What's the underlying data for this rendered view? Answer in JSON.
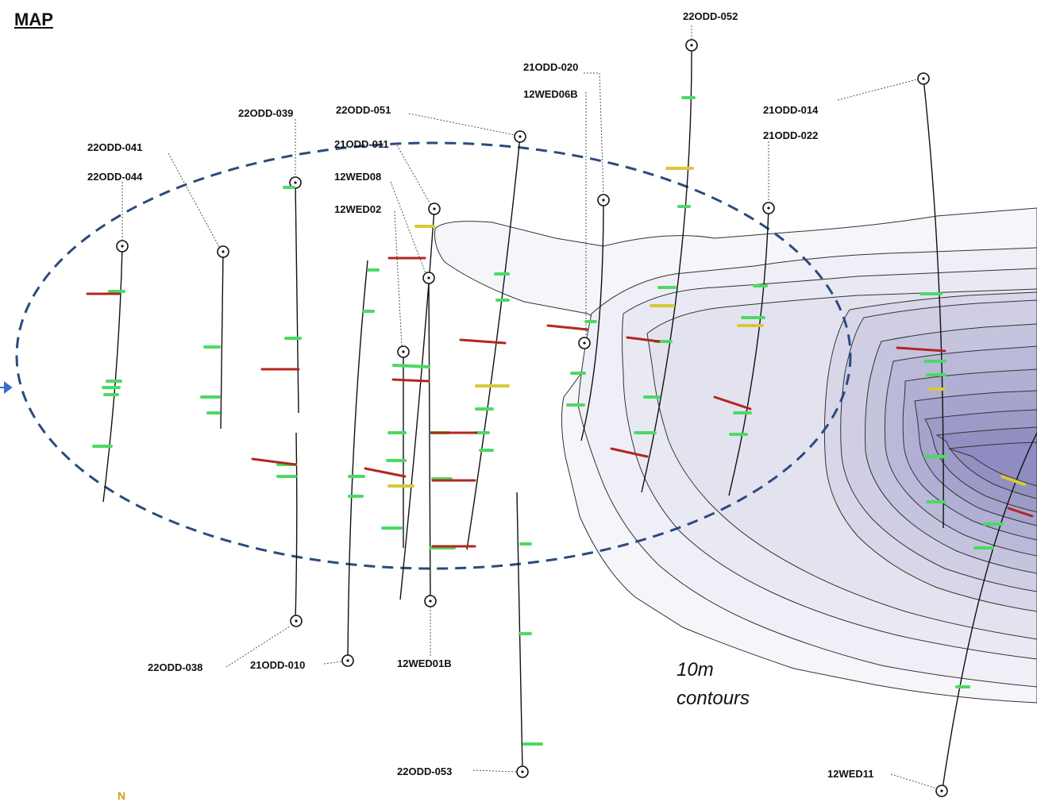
{
  "title": "MAP",
  "contour_note": [
    "10m",
    "contours"
  ],
  "north_label": "N",
  "colors": {
    "contour_fill_light": "#f5f5fa",
    "contour_fill_dark": "#8e8cc2",
    "ellipse": "#2c4a7e",
    "trace": "#111111",
    "intercept_green": "#4cd964",
    "intercept_yellow": "#d6c93a",
    "intercept_red": "#b3261e",
    "arrow": "#3a6fc9"
  },
  "drill_holes": [
    {
      "id": "22ODD-052"
    },
    {
      "id": "21ODD-020"
    },
    {
      "id": "12WED06B"
    },
    {
      "id": "21ODD-014"
    },
    {
      "id": "21ODD-022"
    },
    {
      "id": "22ODD-039"
    },
    {
      "id": "22ODD-051"
    },
    {
      "id": "22ODD-041"
    },
    {
      "id": "22ODD-044"
    },
    {
      "id": "21ODD-011"
    },
    {
      "id": "12WED08"
    },
    {
      "id": "12WED02"
    },
    {
      "id": "22ODD-038"
    },
    {
      "id": "21ODD-010"
    },
    {
      "id": "12WED01B"
    },
    {
      "id": "22ODD-053"
    },
    {
      "id": "12WED11"
    }
  ]
}
